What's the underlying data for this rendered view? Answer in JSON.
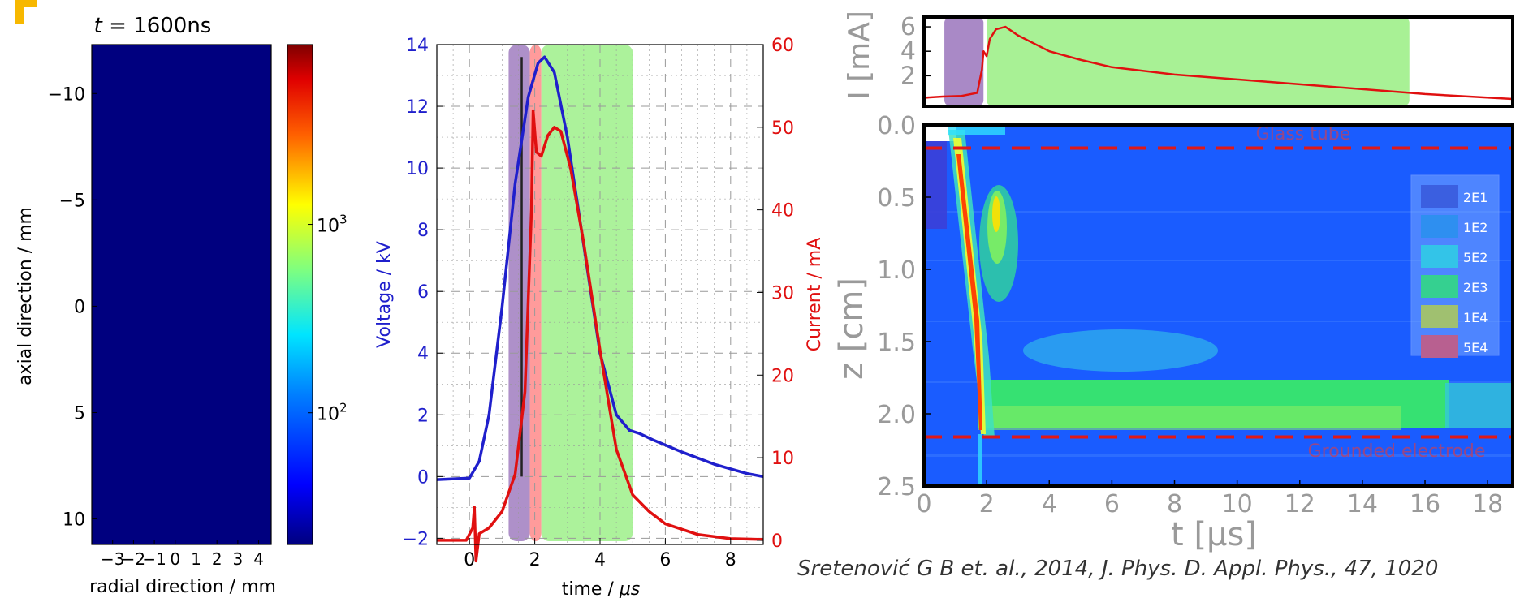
{
  "colors": {
    "voltage": "#1f1fcc",
    "current": "#e01010",
    "purple_band": "#a07cc0",
    "red_band": "#ff8a8a",
    "green_band": "#9ef08a",
    "axis_gray": "#9a9a9a",
    "map_blue": "#1a5cff",
    "dashed": "#e01818"
  },
  "logo_icon": "yellow-logo-fragment-icon",
  "citation": "Sretenović G B et. al., 2014, J. Phys. D. Appl. Phys., 47, 1020",
  "chart_data": [
    {
      "type": "heatmap",
      "title_var": "t",
      "title_eq": " = ",
      "title_val": "1600ns",
      "xlabel": "radial direction / mm",
      "ylabel": "axial direction / mm",
      "xlim": [
        -4,
        4.6
      ],
      "ylim": [
        11.2,
        -12.3
      ],
      "x_tick_values": [
        -3,
        -2,
        -1,
        0,
        1,
        2,
        3,
        4
      ],
      "x_tick_labels": [
        "−3",
        "−2",
        "−1",
        "0",
        "1",
        "2",
        "3",
        "4"
      ],
      "y_tick_values": [
        -10,
        -5,
        0,
        5,
        10
      ],
      "y_tick_labels": [
        "−10",
        "−5",
        "0",
        "5",
        "10"
      ],
      "fill_color": "#00007f",
      "colorbar": {
        "scale": "log",
        "range": [
          20,
          9000
        ],
        "tick_values": [
          100,
          1000
        ],
        "tick_base": "10",
        "tick_exps": [
          "2",
          "3"
        ]
      }
    },
    {
      "type": "line",
      "xlabel_text": "time / ",
      "xlabel_unit": "μs",
      "ylabel_left": "Voltage / kV",
      "ylabel_right": "Current / mA",
      "xlim": [
        -1,
        9
      ],
      "ylim_left": [
        -2.2,
        14
      ],
      "ylim_right": [
        -0.5,
        60
      ],
      "x_ticks": [
        "0",
        "2",
        "4",
        "6",
        "8"
      ],
      "y_ticks_left": [
        "−2",
        "0",
        "2",
        "4",
        "6",
        "8",
        "10",
        "12",
        "14"
      ],
      "y_ticks_right": [
        "0",
        "10",
        "20",
        "30",
        "40",
        "50",
        "60"
      ],
      "grid": true,
      "bands": [
        {
          "x0": 1.2,
          "x1": 1.85,
          "color": "#a07cc0"
        },
        {
          "x0": 1.85,
          "x1": 2.2,
          "color": "#ff8a8a"
        },
        {
          "x0": 2.2,
          "x1": 5.0,
          "color": "#9ef08a"
        }
      ],
      "vline_x": 1.6,
      "series": [
        {
          "axis": "left",
          "color": "#1f1fcc",
          "x": [
            -1,
            0,
            0.3,
            0.6,
            1.0,
            1.4,
            1.8,
            2.1,
            2.3,
            2.6,
            3.0,
            3.5,
            4.0,
            4.5,
            4.9,
            5.2,
            5.6,
            6.5,
            7.5,
            8.5,
            9
          ],
          "y": [
            -0.1,
            -0.05,
            0.5,
            2.0,
            5.5,
            9.5,
            12.3,
            13.4,
            13.6,
            13.1,
            11.0,
            7.5,
            4.0,
            2.0,
            1.5,
            1.4,
            1.2,
            0.8,
            0.4,
            0.1,
            0.0
          ]
        },
        {
          "axis": "right",
          "color": "#e01010",
          "x": [
            -1,
            -0.1,
            0.1,
            0.15,
            0.2,
            0.3,
            0.6,
            1.0,
            1.4,
            1.7,
            1.9,
            1.95,
            2.05,
            2.2,
            2.4,
            2.6,
            2.8,
            3.1,
            3.5,
            4.0,
            4.5,
            5.0,
            5.5,
            6.0,
            7.0,
            8.0,
            9.0
          ],
          "y": [
            0,
            0,
            1.5,
            4.0,
            -2.5,
            0.8,
            1.5,
            3.5,
            8.0,
            18.0,
            40.0,
            52.0,
            47.0,
            46.5,
            49.0,
            50.0,
            49.5,
            45.0,
            36.0,
            23.0,
            11.0,
            5.5,
            3.5,
            2.0,
            0.7,
            0.2,
            0.1
          ]
        }
      ]
    },
    {
      "type": "line",
      "ylabel": "I [mA]",
      "xlim": [
        0,
        18.8
      ],
      "ylim": [
        -0.5,
        6.8
      ],
      "y_ticks": [
        "2",
        "4",
        "6"
      ],
      "bands": [
        {
          "x0": 0.65,
          "x1": 1.9,
          "color": "#a07cc0"
        },
        {
          "x0": 2.0,
          "x1": 15.5,
          "color": "#9ef08a"
        }
      ],
      "series": [
        {
          "color": "#e01010",
          "x": [
            0,
            0.6,
            1.2,
            1.7,
            1.85,
            1.9,
            2.0,
            2.1,
            2.3,
            2.6,
            3.0,
            4.0,
            5.0,
            6.0,
            8.0,
            10.0,
            12.0,
            14.0,
            16.0,
            18.8
          ],
          "y": [
            0.2,
            0.3,
            0.35,
            0.6,
            2.5,
            4.0,
            3.6,
            5.0,
            5.8,
            6.0,
            5.3,
            4.0,
            3.3,
            2.7,
            2.1,
            1.7,
            1.3,
            0.9,
            0.5,
            0.1
          ]
        }
      ]
    },
    {
      "type": "heatmap",
      "xlabel_var": "t",
      "xlabel_unit": " [μs]",
      "ylabel": "z [cm]",
      "xlim": [
        0,
        18.8
      ],
      "ylim": [
        2.5,
        0.0
      ],
      "x_ticks": [
        "0",
        "2",
        "4",
        "6",
        "8",
        "10",
        "12",
        "14",
        "16",
        "18"
      ],
      "y_ticks": [
        "0.0",
        "0.5",
        "1.0",
        "1.5",
        "2.0",
        "2.5"
      ],
      "dashed_lines": [
        {
          "z": 0.16,
          "label": "Glass tube",
          "label_pos": "top-right"
        },
        {
          "z": 2.16,
          "label": "Grounded electrode",
          "label_pos": "bottom-right"
        }
      ],
      "legend": {
        "placement": "right",
        "entries": [
          {
            "label": "2E1",
            "color": "#3b5fe0"
          },
          {
            "label": "1E2",
            "color": "#2e8ff0"
          },
          {
            "label": "5E2",
            "color": "#33c4e8"
          },
          {
            "label": "2E3",
            "color": "#35d090"
          },
          {
            "label": "1E4",
            "color": "#a0c070"
          },
          {
            "label": "5E4",
            "color": "#b86090"
          }
        ]
      }
    }
  ]
}
